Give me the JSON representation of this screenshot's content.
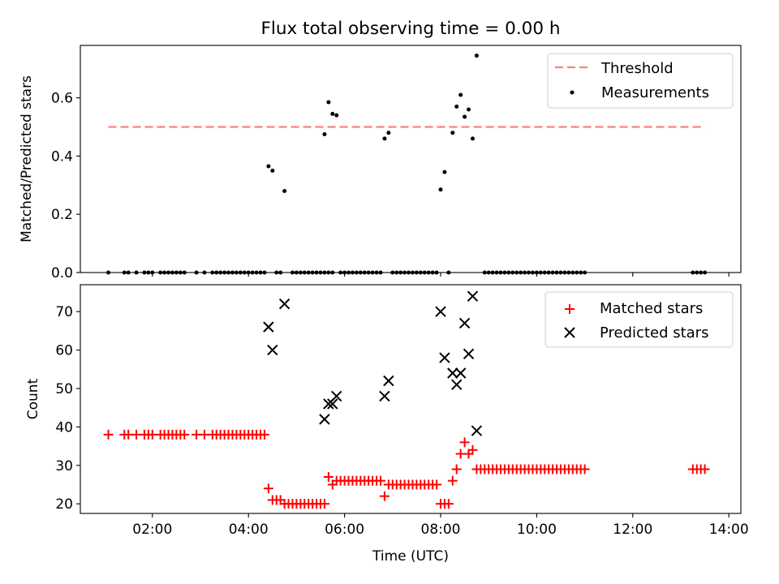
{
  "title": "Flux total observing time = 0.00 h",
  "chart_data": [
    {
      "type": "scatter",
      "ylabel": "Matched/Predicted stars",
      "xlim": [
        "00:30",
        "14:15"
      ],
      "ylim": [
        0,
        0.78
      ],
      "yticks": [
        0,
        0.2,
        0.4,
        0.6
      ],
      "ytick_labels": [
        "0.0",
        "0.2",
        "0.4",
        "0.6"
      ],
      "legend_position": "top-right",
      "threshold": {
        "name": "Threshold",
        "value": 0.5,
        "x_range": [
          "01:05",
          "13:30"
        ],
        "color": "#ff7f7f"
      },
      "series": [
        {
          "name": "Measurements",
          "color": "#000000",
          "points": [
            [
              "01:05",
              0
            ],
            [
              "01:25",
              0
            ],
            [
              "01:30",
              0
            ],
            [
              "01:40",
              0
            ],
            [
              "01:50",
              0
            ],
            [
              "01:55",
              0
            ],
            [
              "02:00",
              0
            ],
            [
              "02:10",
              0
            ],
            [
              "02:15",
              0
            ],
            [
              "02:20",
              0
            ],
            [
              "02:25",
              0
            ],
            [
              "02:30",
              0
            ],
            [
              "02:35",
              0
            ],
            [
              "02:40",
              0
            ],
            [
              "02:55",
              0
            ],
            [
              "03:05",
              0
            ],
            [
              "03:15",
              0
            ],
            [
              "03:20",
              0
            ],
            [
              "03:25",
              0
            ],
            [
              "03:30",
              0
            ],
            [
              "03:35",
              0
            ],
            [
              "03:40",
              0
            ],
            [
              "03:45",
              0
            ],
            [
              "03:50",
              0
            ],
            [
              "03:55",
              0
            ],
            [
              "04:00",
              0
            ],
            [
              "04:05",
              0
            ],
            [
              "04:10",
              0
            ],
            [
              "04:15",
              0
            ],
            [
              "04:20",
              0
            ],
            [
              "04:25",
              0.365
            ],
            [
              "04:30",
              0.35
            ],
            [
              "04:35",
              0
            ],
            [
              "04:40",
              0
            ],
            [
              "04:45",
              0.28
            ],
            [
              "04:55",
              0
            ],
            [
              "05:00",
              0
            ],
            [
              "05:05",
              0
            ],
            [
              "05:10",
              0
            ],
            [
              "05:15",
              0
            ],
            [
              "05:20",
              0
            ],
            [
              "05:25",
              0
            ],
            [
              "05:30",
              0
            ],
            [
              "05:35",
              0
            ],
            [
              "05:40",
              0
            ],
            [
              "05:45",
              0
            ],
            [
              "05:35",
              0.475
            ],
            [
              "05:40",
              0.585
            ],
            [
              "05:45",
              0.545
            ],
            [
              "05:50",
              0.54
            ],
            [
              "05:55",
              0
            ],
            [
              "06:00",
              0
            ],
            [
              "06:05",
              0
            ],
            [
              "06:10",
              0
            ],
            [
              "06:15",
              0
            ],
            [
              "06:20",
              0
            ],
            [
              "06:25",
              0
            ],
            [
              "06:30",
              0
            ],
            [
              "06:35",
              0
            ],
            [
              "06:40",
              0
            ],
            [
              "06:45",
              0
            ],
            [
              "06:50",
              0.46
            ],
            [
              "06:55",
              0.48
            ],
            [
              "07:00",
              0
            ],
            [
              "07:05",
              0
            ],
            [
              "07:10",
              0
            ],
            [
              "07:15",
              0
            ],
            [
              "07:20",
              0
            ],
            [
              "07:25",
              0
            ],
            [
              "07:30",
              0
            ],
            [
              "07:35",
              0
            ],
            [
              "07:40",
              0
            ],
            [
              "07:45",
              0
            ],
            [
              "07:50",
              0
            ],
            [
              "07:55",
              0
            ],
            [
              "08:00",
              0.285
            ],
            [
              "08:05",
              0.345
            ],
            [
              "08:10",
              0
            ],
            [
              "08:15",
              0.48
            ],
            [
              "08:20",
              0.57
            ],
            [
              "08:25",
              0.61
            ],
            [
              "08:30",
              0.535
            ],
            [
              "08:35",
              0.56
            ],
            [
              "08:40",
              0.46
            ],
            [
              "08:45",
              0.745
            ],
            [
              "08:55",
              0
            ],
            [
              "09:00",
              0
            ],
            [
              "09:05",
              0
            ],
            [
              "09:10",
              0
            ],
            [
              "09:15",
              0
            ],
            [
              "09:20",
              0
            ],
            [
              "09:25",
              0
            ],
            [
              "09:30",
              0
            ],
            [
              "09:35",
              0
            ],
            [
              "09:40",
              0
            ],
            [
              "09:45",
              0
            ],
            [
              "09:50",
              0
            ],
            [
              "09:55",
              0
            ],
            [
              "10:00",
              0
            ],
            [
              "10:05",
              0
            ],
            [
              "10:10",
              0
            ],
            [
              "10:15",
              0
            ],
            [
              "10:20",
              0
            ],
            [
              "10:25",
              0
            ],
            [
              "10:30",
              0
            ],
            [
              "10:35",
              0
            ],
            [
              "10:40",
              0
            ],
            [
              "10:45",
              0
            ],
            [
              "10:50",
              0
            ],
            [
              "10:55",
              0
            ],
            [
              "11:00",
              0
            ],
            [
              "13:15",
              0
            ],
            [
              "13:20",
              0
            ],
            [
              "13:25",
              0
            ],
            [
              "13:30",
              0
            ]
          ]
        }
      ]
    },
    {
      "type": "scatter",
      "xlabel": "Time (UTC)",
      "ylabel": "Count",
      "xlim": [
        "00:30",
        "14:15"
      ],
      "ylim": [
        17.5,
        77
      ],
      "xticks": [
        "02:00",
        "04:00",
        "06:00",
        "08:00",
        "10:00",
        "12:00",
        "14:00"
      ],
      "yticks": [
        20,
        30,
        40,
        50,
        60,
        70
      ],
      "legend_position": "top-right",
      "series": [
        {
          "name": "Matched stars",
          "marker": "plus",
          "color": "#ff0000",
          "points": [
            [
              "01:05",
              38
            ],
            [
              "01:25",
              38
            ],
            [
              "01:30",
              38
            ],
            [
              "01:40",
              38
            ],
            [
              "01:50",
              38
            ],
            [
              "01:55",
              38
            ],
            [
              "02:00",
              38
            ],
            [
              "02:10",
              38
            ],
            [
              "02:15",
              38
            ],
            [
              "02:20",
              38
            ],
            [
              "02:25",
              38
            ],
            [
              "02:30",
              38
            ],
            [
              "02:35",
              38
            ],
            [
              "02:40",
              38
            ],
            [
              "02:55",
              38
            ],
            [
              "03:05",
              38
            ],
            [
              "03:15",
              38
            ],
            [
              "03:20",
              38
            ],
            [
              "03:25",
              38
            ],
            [
              "03:30",
              38
            ],
            [
              "03:35",
              38
            ],
            [
              "03:40",
              38
            ],
            [
              "03:45",
              38
            ],
            [
              "03:50",
              38
            ],
            [
              "03:55",
              38
            ],
            [
              "04:00",
              38
            ],
            [
              "04:05",
              38
            ],
            [
              "04:10",
              38
            ],
            [
              "04:15",
              38
            ],
            [
              "04:20",
              38
            ],
            [
              "04:25",
              24
            ],
            [
              "04:30",
              21
            ],
            [
              "04:35",
              21
            ],
            [
              "04:40",
              21
            ],
            [
              "04:45",
              20
            ],
            [
              "04:50",
              20
            ],
            [
              "04:55",
              20
            ],
            [
              "05:00",
              20
            ],
            [
              "05:05",
              20
            ],
            [
              "05:10",
              20
            ],
            [
              "05:15",
              20
            ],
            [
              "05:20",
              20
            ],
            [
              "05:25",
              20
            ],
            [
              "05:30",
              20
            ],
            [
              "05:35",
              20
            ],
            [
              "05:40",
              27
            ],
            [
              "05:45",
              25
            ],
            [
              "05:50",
              26
            ],
            [
              "05:55",
              26
            ],
            [
              "06:00",
              26
            ],
            [
              "06:05",
              26
            ],
            [
              "06:10",
              26
            ],
            [
              "06:15",
              26
            ],
            [
              "06:20",
              26
            ],
            [
              "06:25",
              26
            ],
            [
              "06:30",
              26
            ],
            [
              "06:35",
              26
            ],
            [
              "06:40",
              26
            ],
            [
              "06:45",
              26
            ],
            [
              "06:50",
              22
            ],
            [
              "06:55",
              25
            ],
            [
              "07:00",
              25
            ],
            [
              "07:05",
              25
            ],
            [
              "07:10",
              25
            ],
            [
              "07:15",
              25
            ],
            [
              "07:20",
              25
            ],
            [
              "07:25",
              25
            ],
            [
              "07:30",
              25
            ],
            [
              "07:35",
              25
            ],
            [
              "07:40",
              25
            ],
            [
              "07:45",
              25
            ],
            [
              "07:50",
              25
            ],
            [
              "07:55",
              25
            ],
            [
              "08:00",
              20
            ],
            [
              "08:05",
              20
            ],
            [
              "08:10",
              20
            ],
            [
              "08:15",
              26
            ],
            [
              "08:20",
              29
            ],
            [
              "08:25",
              33
            ],
            [
              "08:30",
              36
            ],
            [
              "08:35",
              33
            ],
            [
              "08:40",
              34
            ],
            [
              "08:45",
              29
            ],
            [
              "08:50",
              29
            ],
            [
              "08:55",
              29
            ],
            [
              "09:00",
              29
            ],
            [
              "09:05",
              29
            ],
            [
              "09:10",
              29
            ],
            [
              "09:15",
              29
            ],
            [
              "09:20",
              29
            ],
            [
              "09:25",
              29
            ],
            [
              "09:30",
              29
            ],
            [
              "09:35",
              29
            ],
            [
              "09:40",
              29
            ],
            [
              "09:45",
              29
            ],
            [
              "09:50",
              29
            ],
            [
              "09:55",
              29
            ],
            [
              "10:00",
              29
            ],
            [
              "10:05",
              29
            ],
            [
              "10:10",
              29
            ],
            [
              "10:15",
              29
            ],
            [
              "10:20",
              29
            ],
            [
              "10:25",
              29
            ],
            [
              "10:30",
              29
            ],
            [
              "10:35",
              29
            ],
            [
              "10:40",
              29
            ],
            [
              "10:45",
              29
            ],
            [
              "10:50",
              29
            ],
            [
              "10:55",
              29
            ],
            [
              "11:00",
              29
            ],
            [
              "13:15",
              29
            ],
            [
              "13:20",
              29
            ],
            [
              "13:25",
              29
            ],
            [
              "13:30",
              29
            ]
          ]
        },
        {
          "name": "Predicted stars",
          "marker": "x",
          "color": "#000000",
          "points": [
            [
              "04:25",
              66
            ],
            [
              "04:30",
              60
            ],
            [
              "04:45",
              72
            ],
            [
              "05:35",
              42
            ],
            [
              "05:40",
              46
            ],
            [
              "05:45",
              46
            ],
            [
              "05:50",
              48
            ],
            [
              "06:50",
              48
            ],
            [
              "06:55",
              52
            ],
            [
              "08:00",
              70
            ],
            [
              "08:05",
              58
            ],
            [
              "08:15",
              54
            ],
            [
              "08:20",
              51
            ],
            [
              "08:25",
              54
            ],
            [
              "08:30",
              67
            ],
            [
              "08:35",
              59
            ],
            [
              "08:40",
              74
            ],
            [
              "08:45",
              39
            ]
          ]
        }
      ]
    }
  ]
}
